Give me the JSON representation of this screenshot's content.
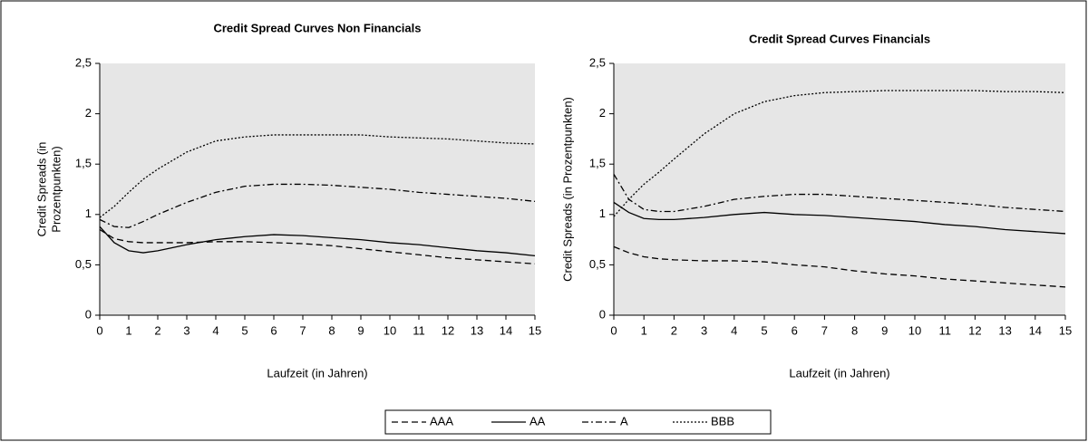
{
  "chart_data": [
    {
      "type": "line",
      "title": "Credit Spread Curves Non Financials",
      "ylabel": [
        "Credit Spreads (in",
        "Prozentpunkten)"
      ],
      "xlabel": "Laufzeit (in Jahren)",
      "x": [
        0,
        0.5,
        1,
        1.5,
        2,
        3,
        4,
        5,
        6,
        7,
        8,
        9,
        10,
        11,
        12,
        13,
        14,
        15
      ],
      "series": [
        {
          "values": [
            0.85,
            0.76,
            0.73,
            0.72,
            0.72,
            0.72,
            0.73,
            0.73,
            0.72,
            0.71,
            0.69,
            0.66,
            0.63,
            0.6,
            0.57,
            0.55,
            0.53,
            0.51
          ]
        },
        {
          "values": [
            0.88,
            0.72,
            0.64,
            0.62,
            0.64,
            0.7,
            0.75,
            0.78,
            0.8,
            0.79,
            0.77,
            0.75,
            0.72,
            0.7,
            0.67,
            0.64,
            0.62,
            0.59
          ]
        },
        {
          "values": [
            0.95,
            0.88,
            0.87,
            0.93,
            1.0,
            1.12,
            1.22,
            1.28,
            1.3,
            1.3,
            1.29,
            1.27,
            1.25,
            1.22,
            1.2,
            1.18,
            1.16,
            1.13
          ]
        },
        {
          "values": [
            0.97,
            1.08,
            1.22,
            1.35,
            1.45,
            1.62,
            1.73,
            1.77,
            1.79,
            1.79,
            1.79,
            1.79,
            1.77,
            1.76,
            1.75,
            1.73,
            1.71,
            1.7
          ]
        }
      ],
      "xlim": [
        0,
        15
      ],
      "xticks": [
        0,
        1,
        2,
        3,
        4,
        5,
        6,
        7,
        8,
        9,
        10,
        11,
        12,
        13,
        14,
        15
      ],
      "ylim": [
        0,
        2.5
      ],
      "yticks": [
        0,
        {
          "value": 0.5,
          "label": "0,5"
        },
        1,
        {
          "value": 1.5,
          "label": "1,5"
        },
        2,
        {
          "value": 2.5,
          "label": "2,5"
        }
      ]
    },
    {
      "type": "line",
      "title": "Credit Spread Curves Financials",
      "ylabel": [
        "Credit Spreads (in Prozentpunkten)"
      ],
      "xlabel": "Laufzeit (in Jahren)",
      "x": [
        0,
        0.5,
        1,
        1.5,
        2,
        3,
        4,
        5,
        6,
        7,
        8,
        9,
        10,
        11,
        12,
        13,
        14,
        15
      ],
      "series": [
        {
          "values": [
            0.68,
            0.62,
            0.58,
            0.56,
            0.55,
            0.54,
            0.54,
            0.53,
            0.5,
            0.48,
            0.44,
            0.41,
            0.39,
            0.36,
            0.34,
            0.32,
            0.3,
            0.28
          ]
        },
        {
          "values": [
            1.12,
            1.02,
            0.96,
            0.95,
            0.95,
            0.97,
            1.0,
            1.02,
            1.0,
            0.99,
            0.97,
            0.95,
            0.93,
            0.9,
            0.88,
            0.85,
            0.83,
            0.81
          ]
        },
        {
          "values": [
            1.4,
            1.15,
            1.05,
            1.03,
            1.03,
            1.08,
            1.15,
            1.18,
            1.2,
            1.2,
            1.18,
            1.16,
            1.14,
            1.12,
            1.1,
            1.07,
            1.05,
            1.03
          ]
        },
        {
          "values": [
            0.98,
            1.15,
            1.3,
            1.42,
            1.55,
            1.8,
            2.0,
            2.12,
            2.18,
            2.21,
            2.22,
            2.23,
            2.23,
            2.23,
            2.23,
            2.22,
            2.22,
            2.21
          ]
        }
      ],
      "xlim": [
        0,
        15
      ],
      "xticks": [
        0,
        1,
        2,
        3,
        4,
        5,
        6,
        7,
        8,
        9,
        10,
        11,
        12,
        13,
        14,
        15
      ],
      "ylim": [
        0,
        2.5
      ],
      "yticks": [
        0,
        {
          "value": 0.5,
          "label": "0,5"
        },
        1,
        {
          "value": 1.5,
          "label": "1,5"
        },
        2,
        {
          "value": 2.5,
          "label": "2,5"
        }
      ]
    }
  ],
  "legend": {
    "series": [
      {
        "name": "AAA",
        "dash": "7,4"
      },
      {
        "name": "AA",
        "dash": "none"
      },
      {
        "name": "A",
        "dash": "7,3,2,3"
      },
      {
        "name": "BBB",
        "dash": "2,2"
      }
    ],
    "color": "#000000"
  }
}
